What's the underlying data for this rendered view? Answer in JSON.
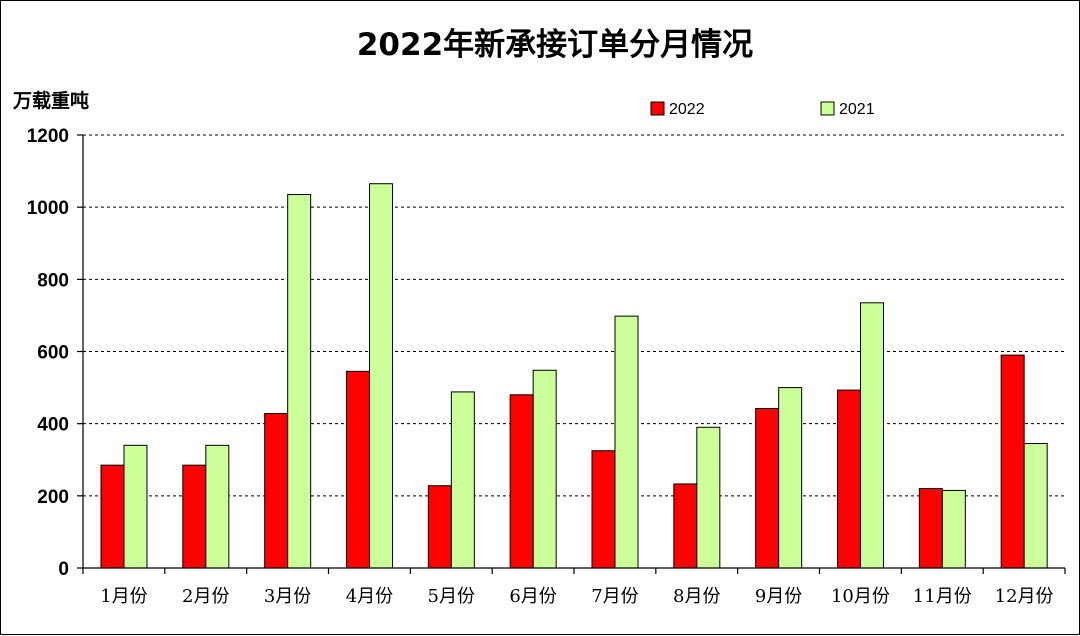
{
  "chart_data": {
    "type": "bar",
    "title": "2022年新承接订单分月情况",
    "ylabel": "万载重吨",
    "xlabel": "",
    "ylim": [
      0,
      1200
    ],
    "yticks": [
      "0",
      "200",
      "400",
      "600",
      "800",
      "1000",
      "1200"
    ],
    "grid": true,
    "legend_position": "top-right",
    "categories": [
      "1月份",
      "2月份",
      "3月份",
      "4月份",
      "5月份",
      "6月份",
      "7月份",
      "8月份",
      "9月份",
      "10月份",
      "11月份",
      "12月份"
    ],
    "series": [
      {
        "name": "2022",
        "color": "#ff0000",
        "values": [
          285,
          285,
          428,
          545,
          228,
          480,
          325,
          233,
          442,
          493,
          220,
          590
        ]
      },
      {
        "name": "2021",
        "color": "#ccff99",
        "values": [
          340,
          340,
          1035,
          1065,
          488,
          548,
          698,
          390,
          500,
          735,
          215,
          345
        ]
      }
    ]
  }
}
